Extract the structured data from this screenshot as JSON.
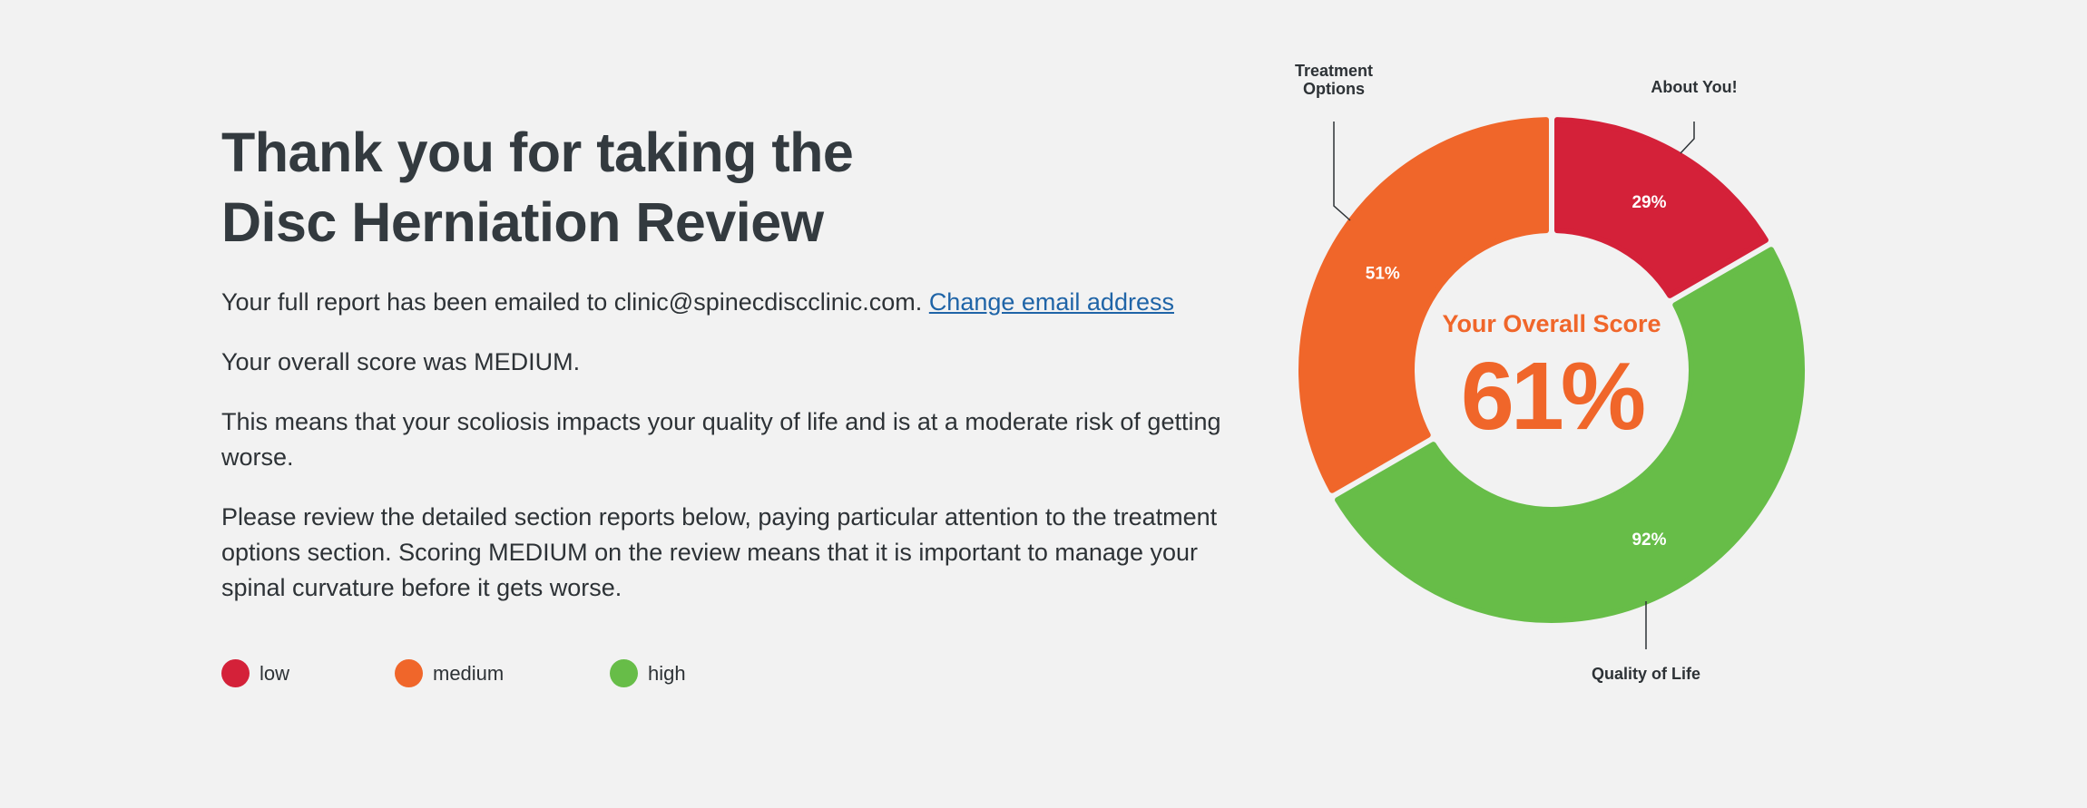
{
  "title": {
    "line1": "Thank you for taking the",
    "line2": "Disc Herniation Review"
  },
  "email_notice": {
    "text": "Your full report has been emailed to clinic@spinecdiscclinic.com.",
    "link_label": "Change email address"
  },
  "overall_score_text": "Your overall score was MEDIUM.",
  "meaning_text": "This means that your scoliosis impacts your quality of life and is at a moderate risk of getting worse.",
  "review_text": "Please review the detailed section reports below, paying particular attention to the treatment options section. Scoring MEDIUM on the review means that it is important to manage your spinal curvature before it gets worse.",
  "legend": [
    {
      "label": "low",
      "color": "#d42139"
    },
    {
      "label": "medium",
      "color": "#f0662a"
    },
    {
      "label": "high",
      "color": "#67bd48"
    }
  ],
  "center": {
    "label": "Your Overall Score",
    "value": "61%",
    "color": "#f0662a"
  },
  "callouts": {
    "treatment_line1": "Treatment",
    "treatment_line2": "Options",
    "about": "About You!",
    "quality": "Quality of Life"
  },
  "chart_data": {
    "type": "pie",
    "title": "Your Overall Score",
    "overall": 61,
    "segments": [
      {
        "name": "About You!",
        "label": "29%",
        "value": 29,
        "sweep_deg": 60,
        "color": "#d42139"
      },
      {
        "name": "Quality of Life",
        "label": "92%",
        "value": 92,
        "sweep_deg": 180,
        "color": "#67bd48"
      },
      {
        "name": "Treatment Options",
        "label": "51%",
        "value": 51,
        "sweep_deg": 120,
        "color": "#f0662a"
      }
    ]
  }
}
